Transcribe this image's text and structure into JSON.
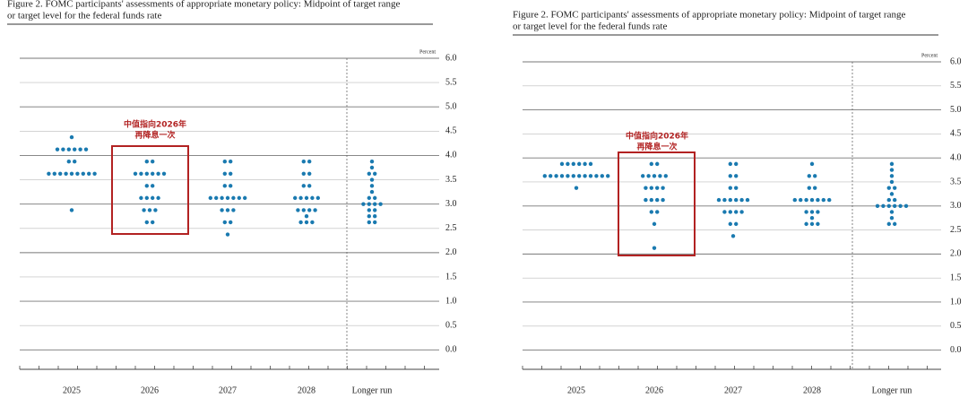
{
  "chart_data": [
    {
      "type": "dot",
      "title": [
        "Figure 2. FOMC participants' assessments of appropriate monetary policy: Midpoint of target range",
        "or target level for the federal funds rate"
      ],
      "ylabel": "Percent",
      "annotation": [
        "中值指向2026年",
        "再降息一次"
      ],
      "categories": [
        "2025",
        "2026",
        "2027",
        "2028",
        "Longer run"
      ],
      "levels": [
        [
          4.375,
          4.125,
          3.875,
          3.625,
          2.875
        ],
        [
          3.875,
          3.625,
          3.375,
          3.125,
          2.875,
          2.625
        ],
        [
          3.875,
          3.625,
          3.375,
          3.125,
          2.875,
          2.625,
          2.375
        ],
        [
          3.875,
          3.625,
          3.375,
          3.125,
          2.875,
          2.75,
          2.625
        ],
        [
          3.875,
          3.75,
          3.625,
          3.5,
          3.375,
          3.25,
          3.125,
          3.0,
          2.875,
          2.75,
          2.625
        ]
      ],
      "counts": [
        [
          1,
          6,
          2,
          9,
          1
        ],
        [
          2,
          6,
          2,
          4,
          3,
          2
        ],
        [
          2,
          2,
          2,
          7,
          3,
          2,
          1
        ],
        [
          2,
          2,
          2,
          5,
          4,
          1,
          3
        ],
        [
          1,
          1,
          2,
          1,
          1,
          1,
          2,
          4,
          2,
          2,
          2
        ]
      ],
      "color": "#1a7ab0",
      "ylim": [
        -0.4,
        6.0
      ],
      "yticks": [
        {
          "value": 0,
          "label": "0.0"
        },
        {
          "value": 0.5,
          "label": "0.5"
        },
        {
          "value": 1,
          "label": "1.0"
        },
        {
          "value": 1.5,
          "label": "1.5"
        },
        {
          "value": 2,
          "label": "2.0"
        },
        {
          "value": 2.5,
          "label": "2.5"
        },
        {
          "value": 3,
          "label": "3.0"
        },
        {
          "value": 3.5,
          "label": "3.5"
        },
        {
          "value": 4,
          "label": "4.0"
        },
        {
          "value": 4.5,
          "label": "4.5"
        },
        {
          "value": 5,
          "label": "5.0"
        },
        {
          "value": 5.5,
          "label": "5.5"
        },
        {
          "value": 6,
          "label": "6.0"
        }
      ],
      "grid": true
    },
    {
      "type": "dot",
      "title": [
        "Figure 2. FOMC participants' assessments of appropriate monetary policy: Midpoint of target range",
        "or target level for the federal funds rate"
      ],
      "ylabel": "Percent",
      "annotation": [
        "中值指向2026年",
        "再降息一次"
      ],
      "categories": [
        "2025",
        "2026",
        "2027",
        "2028",
        "Longer run"
      ],
      "levels": [
        [
          3.875,
          3.625,
          3.375
        ],
        [
          3.875,
          3.625,
          3.375,
          3.125,
          2.875,
          2.625,
          2.125
        ],
        [
          3.875,
          3.625,
          3.375,
          3.125,
          2.875,
          2.625,
          2.375
        ],
        [
          3.875,
          3.625,
          3.375,
          3.125,
          2.875,
          2.75,
          2.625
        ],
        [
          3.875,
          3.75,
          3.625,
          3.5,
          3.375,
          3.25,
          3.125,
          3.0,
          2.875,
          2.75,
          2.625
        ]
      ],
      "counts": [
        [
          6,
          12,
          1
        ],
        [
          2,
          5,
          4,
          4,
          2,
          1,
          1
        ],
        [
          2,
          2,
          2,
          6,
          4,
          2,
          1
        ],
        [
          1,
          2,
          2,
          7,
          3,
          1,
          3
        ],
        [
          1,
          1,
          1,
          1,
          2,
          1,
          2,
          6,
          1,
          1,
          2
        ]
      ],
      "color": "#1a7ab0",
      "ylim": [
        -0.4,
        6.0
      ],
      "yticks": [
        {
          "value": 0,
          "label": "0.0"
        },
        {
          "value": 0.5,
          "label": "0.5"
        },
        {
          "value": 1,
          "label": "1.0"
        },
        {
          "value": 1.5,
          "label": "1.5"
        },
        {
          "value": 2,
          "label": "2.0"
        },
        {
          "value": 2.5,
          "label": "2.5"
        },
        {
          "value": 3,
          "label": "3.0"
        },
        {
          "value": 3.5,
          "label": "3.5"
        },
        {
          "value": 4,
          "label": "4.0"
        },
        {
          "value": 4.5,
          "label": "4.5"
        },
        {
          "value": 5,
          "label": "5.0"
        },
        {
          "value": 5.5,
          "label": "5.5"
        },
        {
          "value": 6,
          "label": "6.0"
        }
      ],
      "grid": true
    }
  ]
}
